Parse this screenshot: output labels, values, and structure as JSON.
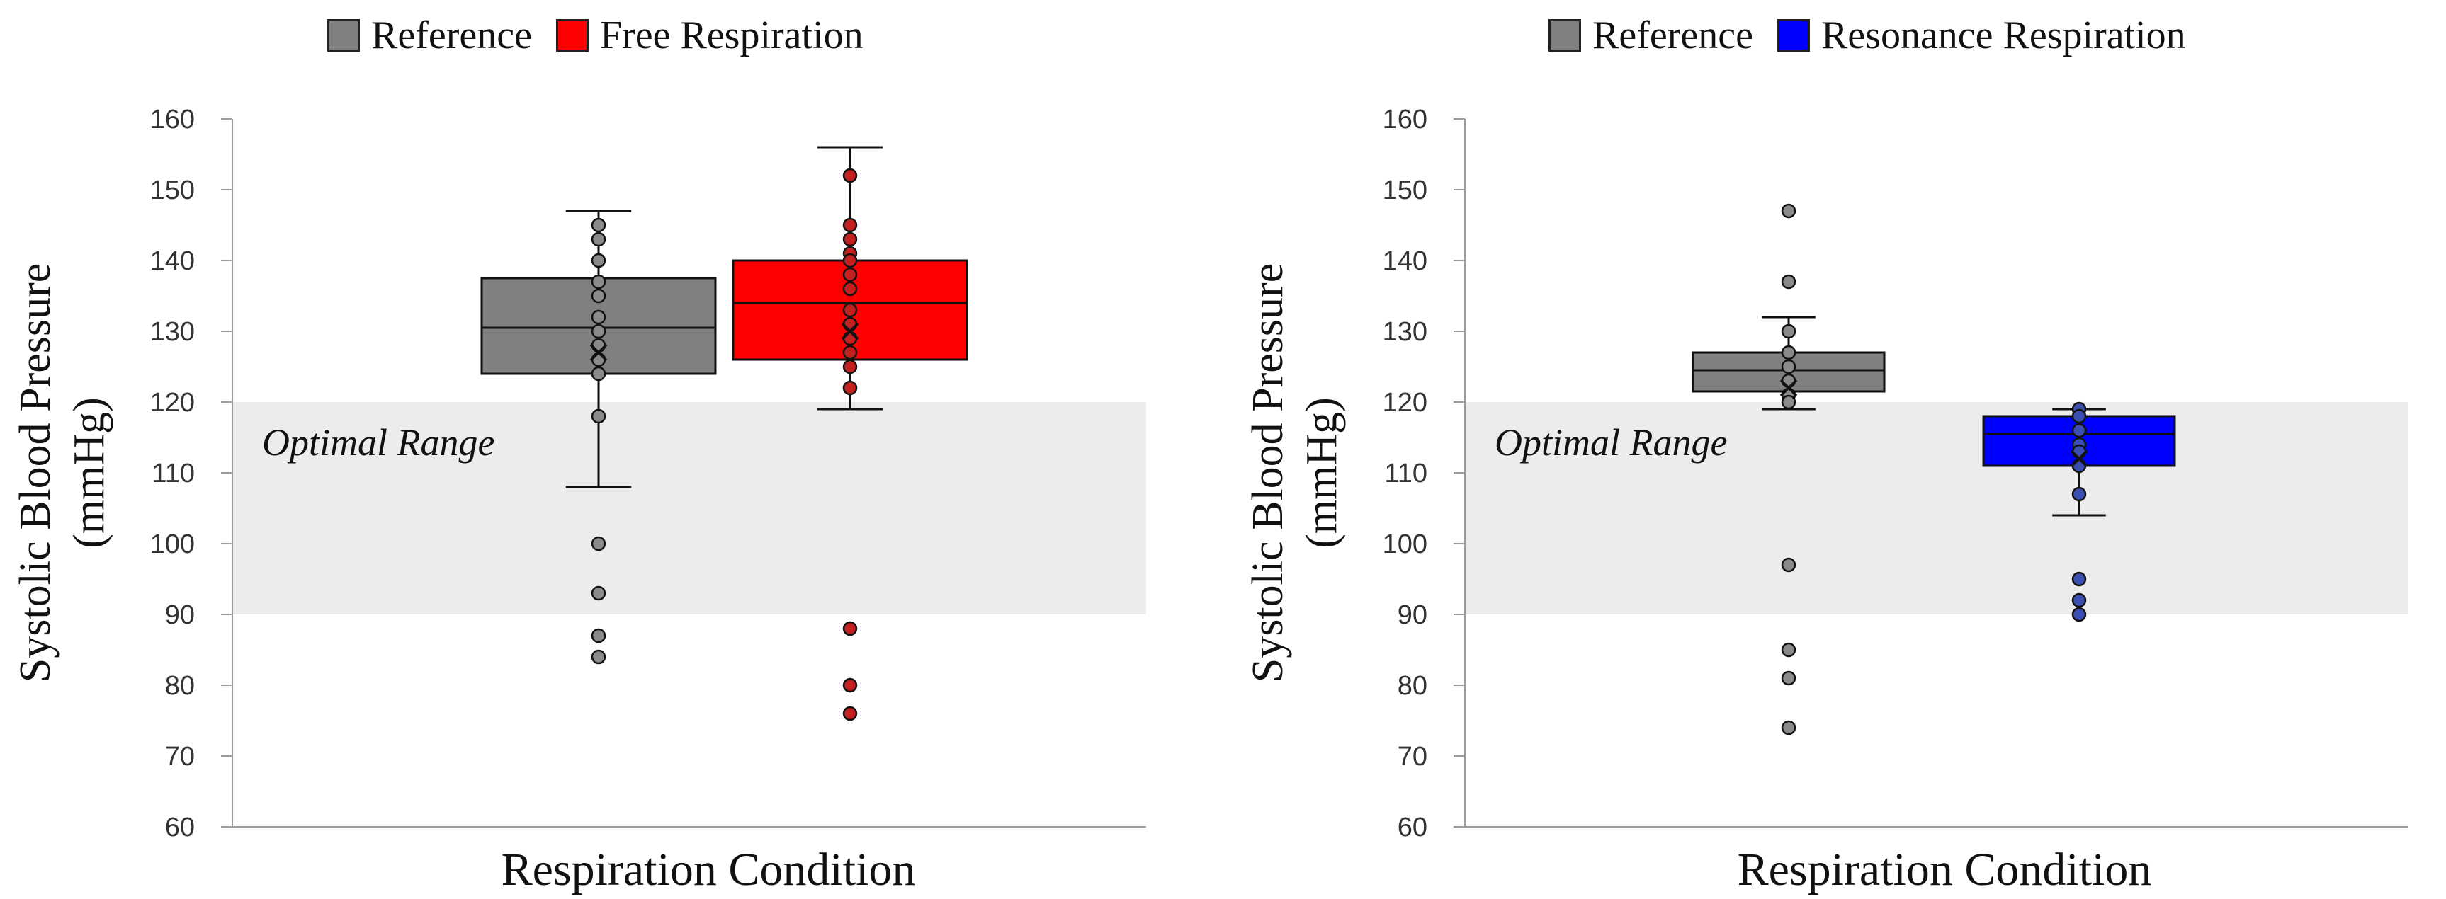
{
  "chart_data": [
    {
      "type": "box",
      "title": "",
      "xlabel": "Respiration Condition",
      "ylabel_line1": "Systolic Blood Pressure",
      "ylabel_line2": "(mmHg)",
      "ylim": [
        60,
        160
      ],
      "yticks": [
        60,
        70,
        80,
        90,
        100,
        110,
        120,
        130,
        140,
        150,
        160
      ],
      "shaded_band": {
        "label": "Optimal Range",
        "from": 90,
        "to": 120,
        "color": "#ececec"
      },
      "legend": [
        {
          "name": "Reference",
          "color": "#808080"
        },
        {
          "name": "Free Respiration",
          "color": "#ff0000"
        }
      ],
      "series": [
        {
          "name": "Reference",
          "color": "#808080",
          "point_color": "#8a8a8a",
          "q1": 124,
          "median": 130.5,
          "q3": 137.5,
          "whisker_low": 108,
          "whisker_high": 147,
          "mean": 127,
          "points": [
            145,
            143,
            140,
            137,
            135,
            132,
            130,
            128,
            126,
            124,
            118,
            100,
            93,
            87,
            84
          ]
        },
        {
          "name": "Free Respiration",
          "color": "#ff0000",
          "point_color": "#c42020",
          "q1": 126,
          "median": 134,
          "q3": 140,
          "whisker_low": 119,
          "whisker_high": 156,
          "mean": 130,
          "points": [
            152,
            145,
            143,
            141,
            140,
            138,
            136,
            133,
            131,
            129,
            127,
            125,
            122,
            88,
            80,
            76
          ]
        }
      ]
    },
    {
      "type": "box",
      "title": "",
      "xlabel": "Respiration Condition",
      "ylabel_line1": "Systolic Blood Pressure",
      "ylabel_line2": "(mmHg)",
      "ylim": [
        60,
        160
      ],
      "yticks": [
        60,
        70,
        80,
        90,
        100,
        110,
        120,
        130,
        140,
        150,
        160
      ],
      "shaded_band": {
        "label": "Optimal Range",
        "from": 90,
        "to": 120,
        "color": "#ececec"
      },
      "legend": [
        {
          "name": "Reference",
          "color": "#808080"
        },
        {
          "name": "Resonance Respiration",
          "color": "#0000ff"
        }
      ],
      "series": [
        {
          "name": "Reference",
          "color": "#808080",
          "point_color": "#8a8a8a",
          "q1": 121.5,
          "median": 124.5,
          "q3": 127,
          "whisker_low": 119,
          "whisker_high": 132,
          "mean": 122,
          "points": [
            147,
            137,
            130,
            127,
            125,
            123,
            121,
            120,
            97,
            85,
            81,
            74
          ]
        },
        {
          "name": "Resonance Respiration",
          "color": "#0000ff",
          "point_color": "#3a4fb0",
          "q1": 111,
          "median": 115.5,
          "q3": 118,
          "whisker_low": 104,
          "whisker_high": 119,
          "mean": 112,
          "points": [
            119,
            118,
            116,
            114,
            113,
            111,
            107,
            95,
            92,
            90
          ]
        }
      ]
    }
  ]
}
